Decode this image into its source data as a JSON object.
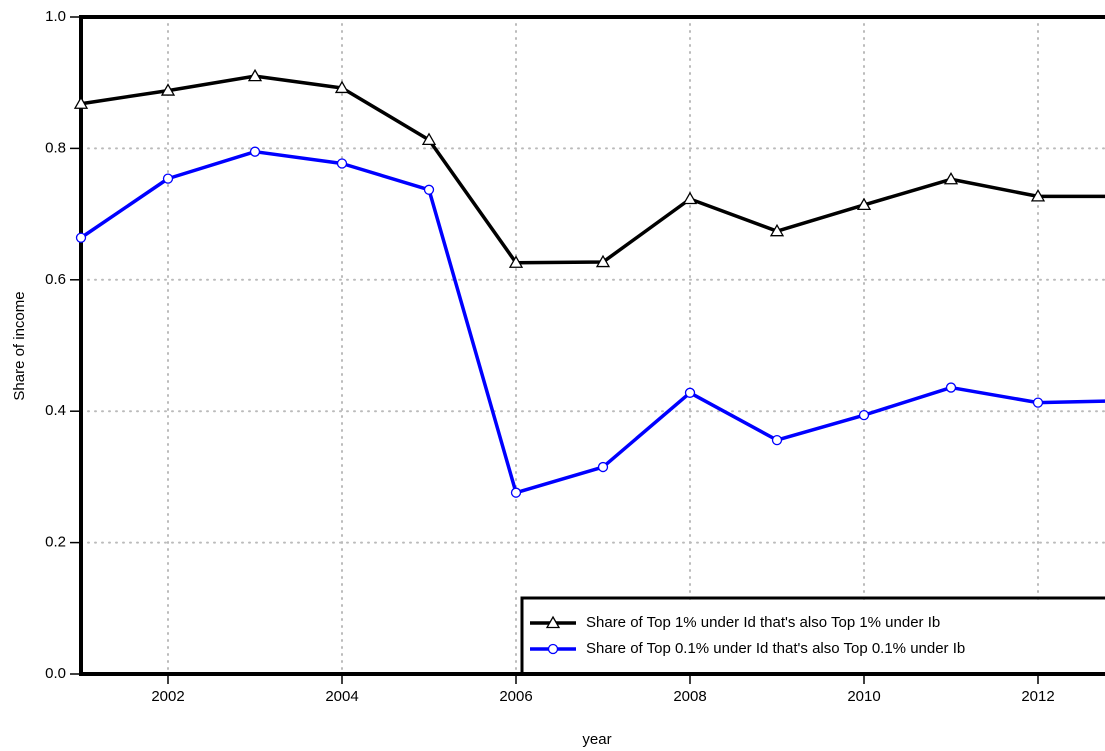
{
  "chart_data": {
    "type": "line",
    "x_label": "year",
    "y_label": "Share of income",
    "x": [
      2001,
      2002,
      2003,
      2004,
      2005,
      2006,
      2007,
      2008,
      2009,
      2010,
      2011,
      2012,
      2013
    ],
    "series": [
      {
        "name": "Share of Top 1% under Id that's also Top 1% under Ib",
        "color": "#000000",
        "marker": "triangle",
        "values": [
          0.868,
          0.888,
          0.91,
          0.892,
          0.813,
          0.626,
          0.627,
          0.723,
          0.674,
          0.714,
          0.753,
          0.727,
          0.727
        ]
      },
      {
        "name": "Share of Top 0.1% under Id that's also Top 0.1% under Ib",
        "color": "#0000ff",
        "marker": "circle",
        "values": [
          0.664,
          0.754,
          0.795,
          0.777,
          0.737,
          0.276,
          0.315,
          0.428,
          0.356,
          0.394,
          0.436,
          0.413,
          0.416
        ]
      }
    ],
    "xlim": [
      2001,
      2013
    ],
    "xticks": [
      2002,
      2004,
      2006,
      2008,
      2010,
      2012
    ],
    "ylim": [
      0,
      1
    ],
    "yticks": [
      {
        "value": 0,
        "label": "0.0"
      },
      0.2,
      0.4,
      0.6,
      0.8,
      {
        "value": 1,
        "label": "1.0"
      }
    ],
    "grid": true,
    "legend": "lower right"
  }
}
